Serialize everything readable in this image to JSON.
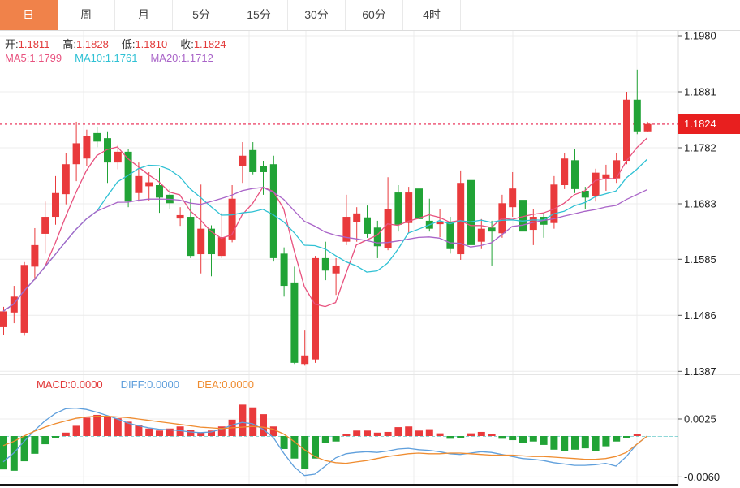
{
  "tabs": {
    "items": [
      {
        "id": "tab-day",
        "label": "日",
        "selected": true
      },
      {
        "id": "tab-week",
        "label": "周",
        "selected": false
      },
      {
        "id": "tab-month",
        "label": "月",
        "selected": false
      },
      {
        "id": "tab-5min",
        "label": "5分",
        "selected": false
      },
      {
        "id": "tab-15min",
        "label": "15分",
        "selected": false
      },
      {
        "id": "tab-30min",
        "label": "30分",
        "selected": false
      },
      {
        "id": "tab-60min",
        "label": "60分",
        "selected": false
      },
      {
        "id": "tab-4hour",
        "label": "4时",
        "selected": false
      }
    ]
  },
  "info": {
    "ohlc": [
      {
        "label": "开:",
        "value": "1.1811"
      },
      {
        "label": "高:",
        "value": "1.1828"
      },
      {
        "label": "低:",
        "value": "1.1810"
      },
      {
        "label": "收:",
        "value": "1.1824"
      }
    ],
    "value_color": "#e23a3a",
    "ma": [
      {
        "label": "MA5:",
        "value": "1.1799",
        "color": "#e8517e"
      },
      {
        "label": "MA10:",
        "value": "1.1761",
        "color": "#2fc1d4"
      },
      {
        "label": "MA20:",
        "value": "1.1712",
        "color": "#a964c8"
      }
    ]
  },
  "price_axis": {
    "tick_labels": [
      "1.1980",
      "1.1881",
      "1.1782",
      "1.1683",
      "1.1585",
      "1.1486",
      "1.1387"
    ],
    "current": {
      "value": "1.1824",
      "bg": "#e81f1f"
    }
  },
  "macd_panel": {
    "labels": [
      {
        "label": "MACD:",
        "value": "0.0000",
        "color": "#e23a3a"
      },
      {
        "label": "DIFF:",
        "value": "0.0000",
        "color": "#5f9fdc"
      },
      {
        "label": "DEA:",
        "value": "0.0000",
        "color": "#ef8c30"
      }
    ],
    "tick_labels": [
      "0.0025",
      "-0.0060"
    ]
  },
  "colors": {
    "up": "#e93a3c",
    "down": "#21a336",
    "tab_selected_bg": "#f0824a",
    "ma5": "#e8517e",
    "ma10": "#2fc1d4",
    "ma20": "#a964c8",
    "diff": "#5f9fdc",
    "dea": "#ef8c30",
    "dashed_price": "#f0718c",
    "zero_dash": "#8fd8d8",
    "grid": "#ececec",
    "axis": "#555",
    "label_text": "#222",
    "bottom_border": "#151515"
  },
  "chart_data": [
    {
      "type": "candlestick",
      "title": "daily K-line with MA5/MA10/MA20 overlays",
      "ylim": [
        1.1382,
        1.199
      ],
      "y_ticks": [
        1.198,
        1.1881,
        1.1782,
        1.1683,
        1.1585,
        1.1486,
        1.1387
      ],
      "current_price": 1.1824,
      "grid": true,
      "ma_periods": [
        5,
        10,
        20
      ],
      "candles_ohlc": [
        [
          1.1465,
          1.1501,
          1.1452,
          1.1493
        ],
        [
          1.1491,
          1.1538,
          1.1472,
          1.1519
        ],
        [
          1.1455,
          1.158,
          1.145,
          1.1575
        ],
        [
          1.1572,
          1.164,
          1.1548,
          1.161
        ],
        [
          1.163,
          1.1687,
          1.1595,
          1.166
        ],
        [
          1.166,
          1.1732,
          1.1646,
          1.1702
        ],
        [
          1.17,
          1.1773,
          1.1682,
          1.1753
        ],
        [
          1.1753,
          1.1828,
          1.1723,
          1.179
        ],
        [
          1.1763,
          1.1814,
          1.175,
          1.1803
        ],
        [
          1.1808,
          1.1818,
          1.1783,
          1.1793
        ],
        [
          1.1799,
          1.1811,
          1.172,
          1.1756
        ],
        [
          1.1756,
          1.1788,
          1.1744,
          1.1775
        ],
        [
          1.1775,
          1.178,
          1.1677,
          1.1687
        ],
        [
          1.1702,
          1.1756,
          1.1687,
          1.1732
        ],
        [
          1.1714,
          1.1739,
          1.1689,
          1.1721
        ],
        [
          1.1716,
          1.1746,
          1.1667,
          1.1694
        ],
        [
          1.1699,
          1.1709,
          1.1673,
          1.1684
        ],
        [
          1.1657,
          1.1677,
          1.1644,
          1.1663
        ],
        [
          1.166,
          1.1692,
          1.1587,
          1.1591
        ],
        [
          1.1594,
          1.1717,
          1.156,
          1.1639
        ],
        [
          1.1639,
          1.1645,
          1.1555,
          1.1594
        ],
        [
          1.1591,
          1.1667,
          1.1587,
          1.1624
        ],
        [
          1.162,
          1.1716,
          1.1615,
          1.1692
        ],
        [
          1.1749,
          1.1792,
          1.172,
          1.1768
        ],
        [
          1.1778,
          1.1792,
          1.1735,
          1.1739
        ],
        [
          1.1749,
          1.1759,
          1.1699,
          1.1739
        ],
        [
          1.1753,
          1.1768,
          1.1581,
          1.1587
        ],
        [
          1.1595,
          1.1606,
          1.1519,
          1.1538
        ],
        [
          1.1544,
          1.1572,
          1.14,
          1.1402
        ],
        [
          1.14,
          1.1459,
          1.1397,
          1.1415
        ],
        [
          1.1408,
          1.1591,
          1.1402,
          1.1587
        ],
        [
          1.1587,
          1.1616,
          1.1548,
          1.1565
        ],
        [
          1.156,
          1.1587,
          1.1522,
          1.1574
        ],
        [
          1.1616,
          1.1699,
          1.161,
          1.166
        ],
        [
          1.1651,
          1.1677,
          1.1616,
          1.1666
        ],
        [
          1.1659,
          1.168,
          1.1623,
          1.163
        ],
        [
          1.1641,
          1.1653,
          1.1587,
          1.1608
        ],
        [
          1.1605,
          1.173,
          1.1601,
          1.1674
        ],
        [
          1.1703,
          1.1716,
          1.1634,
          1.1646
        ],
        [
          1.1649,
          1.1713,
          1.1631,
          1.1703
        ],
        [
          1.171,
          1.172,
          1.1649,
          1.1656
        ],
        [
          1.1653,
          1.1692,
          1.1634,
          1.1639
        ],
        [
          1.1647,
          1.1673,
          1.1624,
          1.1651
        ],
        [
          1.1651,
          1.166,
          1.1595,
          1.1603
        ],
        [
          1.1594,
          1.1742,
          1.1584,
          1.172
        ],
        [
          1.1725,
          1.173,
          1.1605,
          1.161
        ],
        [
          1.1616,
          1.1656,
          1.1603,
          1.1639
        ],
        [
          1.1641,
          1.1653,
          1.1574,
          1.1634
        ],
        [
          1.1631,
          1.1699,
          1.1623,
          1.1684
        ],
        [
          1.1677,
          1.1739,
          1.166,
          1.171
        ],
        [
          1.169,
          1.1716,
          1.1608,
          1.1634
        ],
        [
          1.1637,
          1.1673,
          1.161,
          1.166
        ],
        [
          1.166,
          1.1667,
          1.1623,
          1.1646
        ],
        [
          1.1649,
          1.1732,
          1.1639,
          1.1717
        ],
        [
          1.1716,
          1.1773,
          1.1709,
          1.1763
        ],
        [
          1.176,
          1.178,
          1.1702,
          1.1709
        ],
        [
          1.1706,
          1.1713,
          1.1673,
          1.1694
        ],
        [
          1.1696,
          1.1745,
          1.1687,
          1.1738
        ],
        [
          1.1728,
          1.1752,
          1.1706,
          1.1735
        ],
        [
          1.1728,
          1.1773,
          1.172,
          1.176
        ],
        [
          1.1759,
          1.1881,
          1.1753,
          1.1867
        ],
        [
          1.1867,
          1.192,
          1.1806,
          1.1811
        ],
        [
          1.1811,
          1.1828,
          1.181,
          1.1824
        ]
      ]
    },
    {
      "type": "bar",
      "title": "MACD histogram with DIFF/DEA lines",
      "ylim": [
        -0.0073,
        0.0056
      ],
      "y_ticks": [
        0.0025,
        -0.006
      ],
      "values": [
        -0.0049,
        -0.0051,
        -0.0037,
        -0.0026,
        -0.0012,
        -0.0003,
        0.0005,
        0.0015,
        0.0027,
        0.0031,
        0.0029,
        0.0026,
        0.0021,
        0.0016,
        0.0011,
        0.0008,
        0.0011,
        0.0014,
        0.0009,
        0.0005,
        0.0008,
        0.0014,
        0.0024,
        0.0046,
        0.0042,
        0.0032,
        0.0014,
        -0.0019,
        -0.0033,
        -0.0048,
        -0.0033,
        -0.001,
        -0.0008,
        0.0003,
        0.0008,
        0.0008,
        0.0005,
        0.0006,
        0.0013,
        0.0014,
        0.0008,
        0.001,
        0.0004,
        -0.0004,
        -0.0003,
        0.0004,
        0.0006,
        0.0003,
        -0.0004,
        -0.0006,
        -0.001,
        -0.0008,
        -0.0013,
        -0.002,
        -0.0022,
        -0.002,
        -0.0018,
        -0.0022,
        -0.0015,
        -0.0008,
        -0.0003,
        0.0003,
        0.0
      ],
      "series": [
        {
          "name": "DIFF",
          "values": [
            -0.0038,
            -0.0025,
            -0.0008,
            0.0008,
            0.0022,
            0.0033,
            0.004,
            0.0041,
            0.0039,
            0.0035,
            0.003,
            0.0025,
            0.0019,
            0.0015,
            0.0012,
            0.001,
            0.0009,
            0.0008,
            0.0006,
            0.0005,
            0.0006,
            0.001,
            0.0016,
            0.002,
            0.0018,
            0.001,
            -0.0002,
            -0.0025,
            -0.0045,
            -0.0058,
            -0.0056,
            -0.0044,
            -0.0032,
            -0.0026,
            -0.0024,
            -0.0023,
            -0.0024,
            -0.0022,
            -0.0019,
            -0.0018,
            -0.002,
            -0.0021,
            -0.0023,
            -0.0026,
            -0.0027,
            -0.0025,
            -0.0023,
            -0.0024,
            -0.0027,
            -0.003,
            -0.0033,
            -0.0034,
            -0.0036,
            -0.0039,
            -0.0041,
            -0.0043,
            -0.0043,
            -0.0042,
            -0.004,
            -0.0044,
            -0.003,
            -0.0012,
            0.0
          ]
        },
        {
          "name": "DEA",
          "values": [
            -0.0014,
            -0.0008,
            0.0,
            0.0007,
            0.0013,
            0.0018,
            0.0022,
            0.0026,
            0.0028,
            0.0029,
            0.0029,
            0.0028,
            0.0027,
            0.0025,
            0.0023,
            0.0021,
            0.0019,
            0.0017,
            0.0015,
            0.0013,
            0.0012,
            0.0011,
            0.0012,
            0.0013,
            0.0014,
            0.0013,
            0.001,
            0.0003,
            -0.0008,
            -0.002,
            -0.003,
            -0.0036,
            -0.0039,
            -0.004,
            -0.0038,
            -0.0036,
            -0.0033,
            -0.003,
            -0.0028,
            -0.0026,
            -0.0025,
            -0.0026,
            -0.0026,
            -0.0025,
            -0.0025,
            -0.0026,
            -0.0027,
            -0.0028,
            -0.0028,
            -0.0028,
            -0.0029,
            -0.003,
            -0.003,
            -0.0031,
            -0.0032,
            -0.0033,
            -0.0034,
            -0.0034,
            -0.0033,
            -0.003,
            -0.0024,
            -0.0012,
            0.0
          ]
        }
      ]
    }
  ]
}
